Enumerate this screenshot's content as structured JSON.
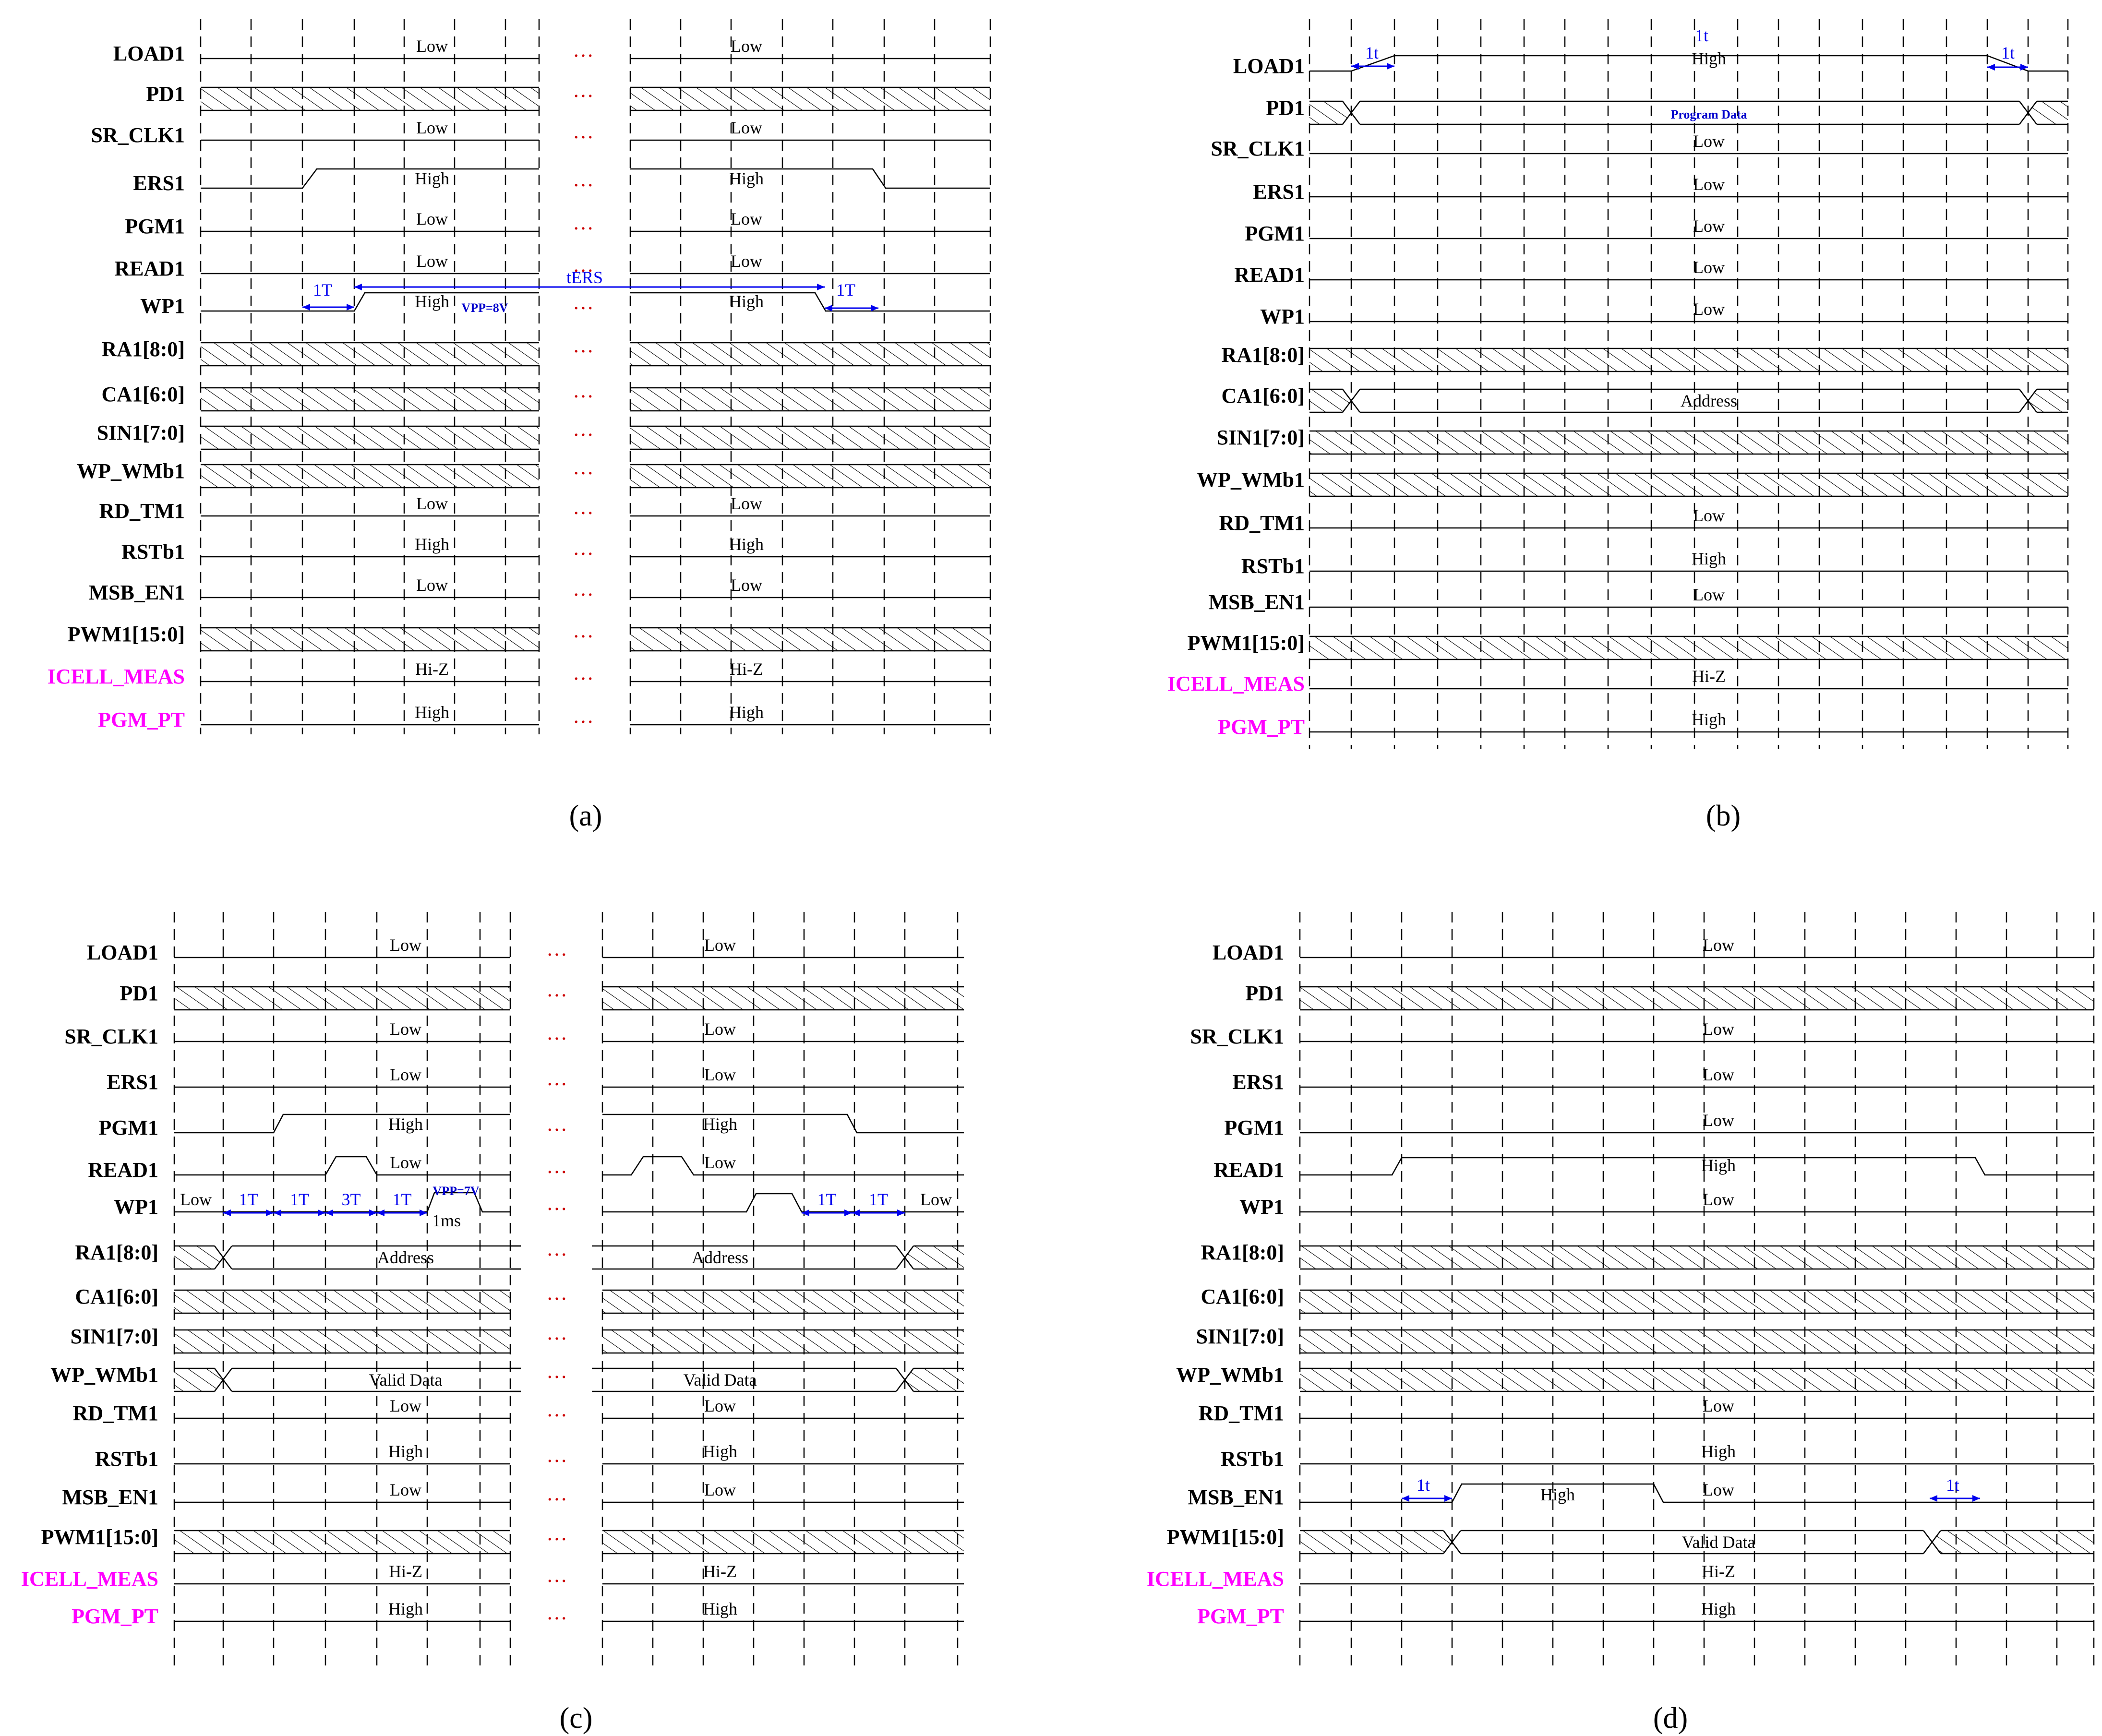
{
  "colors": {
    "signal_label": "#000000",
    "special_label": "#ff00ff",
    "annotation": "#0000ee",
    "ellipsis": "#cc0000",
    "pink_note": "#ff00ff",
    "grid": "#000000"
  },
  "ellipsis_text": "…",
  "panels": [
    {
      "caption": "(a)",
      "signals": [
        {
          "name": "LOAD1",
          "color": "black",
          "labels": [
            "Low",
            "Low"
          ]
        },
        {
          "name": "PD1",
          "color": "black",
          "labels": []
        },
        {
          "name": "SR_CLK1",
          "color": "black",
          "labels": [
            "Low",
            "Low"
          ]
        },
        {
          "name": "ERS1",
          "color": "black",
          "labels": [
            "High",
            "High"
          ]
        },
        {
          "name": "PGM1",
          "color": "black",
          "labels": [
            "Low",
            "Low"
          ]
        },
        {
          "name": "READ1",
          "color": "black",
          "labels": [
            "Low",
            "Low"
          ]
        },
        {
          "name": "WP1",
          "color": "black",
          "labels": [
            "High",
            "High"
          ]
        },
        {
          "name": "RA1[8:0]",
          "color": "black",
          "labels": []
        },
        {
          "name": "CA1[6:0]",
          "color": "black",
          "labels": []
        },
        {
          "name": "SIN1[7:0]",
          "color": "black",
          "labels": []
        },
        {
          "name": "WP_WMb1",
          "color": "black",
          "labels": []
        },
        {
          "name": "RD_TM1",
          "color": "black",
          "labels": [
            "Low",
            "Low"
          ]
        },
        {
          "name": "RSTb1",
          "color": "black",
          "labels": [
            "High",
            "High"
          ]
        },
        {
          "name": "MSB_EN1",
          "color": "black",
          "labels": [
            "Low",
            "Low"
          ]
        },
        {
          "name": "PWM1[15:0]",
          "color": "black",
          "labels": []
        },
        {
          "name": "ICELL_MEAS",
          "color": "magenta",
          "labels": [
            "Hi-Z",
            "Hi-Z"
          ]
        },
        {
          "name": "PGM_PT",
          "color": "magenta",
          "labels": [
            "High",
            "High"
          ]
        }
      ],
      "annotations": [
        "1T",
        "VPP=8V",
        "tERS",
        "1T"
      ]
    },
    {
      "caption": "(b)",
      "signals": [
        {
          "name": "LOAD1",
          "color": "black",
          "labels": [
            "High"
          ]
        },
        {
          "name": "PD1",
          "color": "black",
          "labels": [
            "Program Data"
          ]
        },
        {
          "name": "SR_CLK1",
          "color": "black",
          "labels": [
            "Low"
          ]
        },
        {
          "name": "ERS1",
          "color": "black",
          "labels": [
            "Low"
          ]
        },
        {
          "name": "PGM1",
          "color": "black",
          "labels": [
            "Low"
          ]
        },
        {
          "name": "READ1",
          "color": "black",
          "labels": [
            "Low"
          ]
        },
        {
          "name": "WP1",
          "color": "black",
          "labels": [
            "Low"
          ]
        },
        {
          "name": "RA1[8:0]",
          "color": "black",
          "labels": []
        },
        {
          "name": "CA1[6:0]",
          "color": "black",
          "labels": [
            "Address"
          ]
        },
        {
          "name": "SIN1[7:0]",
          "color": "black",
          "labels": []
        },
        {
          "name": "WP_WMb1",
          "color": "black",
          "labels": []
        },
        {
          "name": "RD_TM1",
          "color": "black",
          "labels": [
            "Low"
          ]
        },
        {
          "name": "RSTb1",
          "color": "black",
          "labels": [
            "High"
          ]
        },
        {
          "name": "MSB_EN1",
          "color": "black",
          "labels": [
            "Low"
          ]
        },
        {
          "name": "PWM1[15:0]",
          "color": "black",
          "labels": []
        },
        {
          "name": "ICELL_MEAS",
          "color": "magenta",
          "labels": [
            "Hi-Z"
          ]
        },
        {
          "name": "PGM_PT",
          "color": "magenta",
          "labels": [
            "High"
          ]
        }
      ],
      "annotations": [
        "1t",
        "1t",
        "1t"
      ]
    },
    {
      "caption": "(c)",
      "signals": [
        {
          "name": "LOAD1",
          "color": "black",
          "labels": [
            "Low",
            "Low"
          ]
        },
        {
          "name": "PD1",
          "color": "black",
          "labels": []
        },
        {
          "name": "SR_CLK1",
          "color": "black",
          "labels": [
            "Low",
            "Low"
          ]
        },
        {
          "name": "ERS1",
          "color": "black",
          "labels": [
            "Low",
            "Low"
          ]
        },
        {
          "name": "PGM1",
          "color": "black",
          "labels": [
            "High",
            "High"
          ]
        },
        {
          "name": "READ1",
          "color": "black",
          "labels": [
            "Low",
            "Low"
          ]
        },
        {
          "name": "WP1",
          "color": "black",
          "labels": [
            "Low",
            "Low"
          ]
        },
        {
          "name": "RA1[8:0]",
          "color": "black",
          "labels": [
            "Address",
            "Address"
          ]
        },
        {
          "name": "CA1[6:0]",
          "color": "black",
          "labels": []
        },
        {
          "name": "SIN1[7:0]",
          "color": "black",
          "labels": []
        },
        {
          "name": "WP_WMb1",
          "color": "black",
          "labels": [
            "Valid  Data",
            "Valid  Data"
          ]
        },
        {
          "name": "RD_TM1",
          "color": "black",
          "labels": [
            "Low",
            "Low"
          ]
        },
        {
          "name": "RSTb1",
          "color": "black",
          "labels": [
            "High",
            "High"
          ]
        },
        {
          "name": "MSB_EN1",
          "color": "black",
          "labels": [
            "Low",
            "Low"
          ]
        },
        {
          "name": "PWM1[15:0]",
          "color": "black",
          "labels": []
        },
        {
          "name": "ICELL_MEAS",
          "color": "magenta",
          "labels": [
            "Hi-Z",
            "Hi-Z"
          ]
        },
        {
          "name": "PGM_PT",
          "color": "magenta",
          "labels": [
            "High",
            "High"
          ]
        }
      ],
      "annotations": [
        "1T",
        "1T",
        "3T",
        "1T",
        "VPP=7V",
        "1ms",
        "1T",
        "1T"
      ]
    },
    {
      "caption": "(d)",
      "signals": [
        {
          "name": "LOAD1",
          "color": "black",
          "labels": [
            "Low"
          ]
        },
        {
          "name": "PD1",
          "color": "black",
          "labels": []
        },
        {
          "name": "SR_CLK1",
          "color": "black",
          "labels": [
            "Low"
          ]
        },
        {
          "name": "ERS1",
          "color": "black",
          "labels": [
            "Low"
          ]
        },
        {
          "name": "PGM1",
          "color": "black",
          "labels": [
            "Low"
          ]
        },
        {
          "name": "READ1",
          "color": "black",
          "labels": [
            "High"
          ]
        },
        {
          "name": "WP1",
          "color": "black",
          "labels": [
            "Low"
          ]
        },
        {
          "name": "RA1[8:0]",
          "color": "black",
          "labels": []
        },
        {
          "name": "CA1[6:0]",
          "color": "black",
          "labels": []
        },
        {
          "name": "SIN1[7:0]",
          "color": "black",
          "labels": []
        },
        {
          "name": "WP_WMb1",
          "color": "black",
          "labels": []
        },
        {
          "name": "RD_TM1",
          "color": "black",
          "labels": [
            "Low"
          ]
        },
        {
          "name": "RSTb1",
          "color": "black",
          "labels": [
            "High"
          ]
        },
        {
          "name": "MSB_EN1",
          "color": "black",
          "labels": [
            "High",
            "Low"
          ]
        },
        {
          "name": "PWM1[15:0]",
          "color": "black",
          "labels": [
            "Valid  Data"
          ]
        },
        {
          "name": "ICELL_MEAS",
          "color": "magenta",
          "labels": [
            "Hi-Z"
          ]
        },
        {
          "name": "PGM_PT",
          "color": "magenta",
          "labels": [
            "High"
          ]
        }
      ],
      "annotations": [
        "1t",
        "1t"
      ]
    }
  ]
}
